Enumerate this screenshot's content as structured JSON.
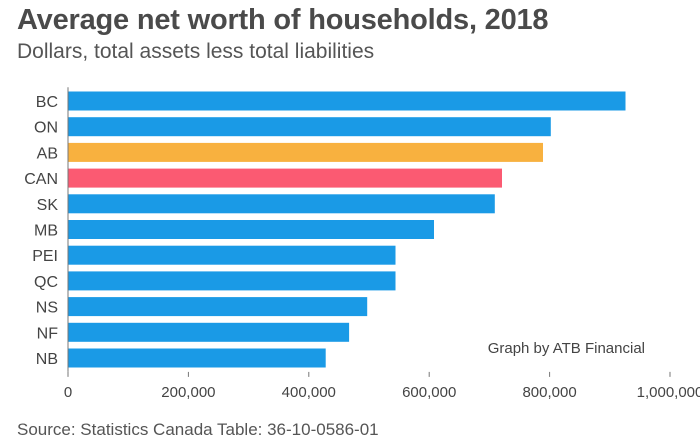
{
  "header": {
    "title": "Average net worth of households, 2018",
    "subtitle": "Dollars, total assets less total liabilities"
  },
  "footer": {
    "source": "Source: Statistics Canada Table: 36-10-0586-01"
  },
  "chart_data": {
    "type": "bar",
    "orientation": "horizontal",
    "categories": [
      "BC",
      "ON",
      "AB",
      "CAN",
      "SK",
      "MB",
      "PEI",
      "QC",
      "NS",
      "NF",
      "NB"
    ],
    "values": [
      926000,
      802000,
      789000,
      721000,
      709000,
      608000,
      544000,
      544000,
      497000,
      467000,
      428000
    ],
    "colors": [
      "#1a9ae6",
      "#1a9ae6",
      "#f8b13f",
      "#fb5a72",
      "#1a9ae6",
      "#1a9ae6",
      "#1a9ae6",
      "#1a9ae6",
      "#1a9ae6",
      "#1a9ae6",
      "#1a9ae6"
    ],
    "xlim": [
      0,
      1000000
    ],
    "xticks": [
      0,
      200000,
      400000,
      600000,
      800000,
      1000000
    ],
    "xtick_labels": [
      "0",
      "200,000",
      "400,000",
      "600,000",
      "800,000",
      "1,000,000"
    ],
    "annotation": "Graph by ATB Financial",
    "grid": false
  }
}
